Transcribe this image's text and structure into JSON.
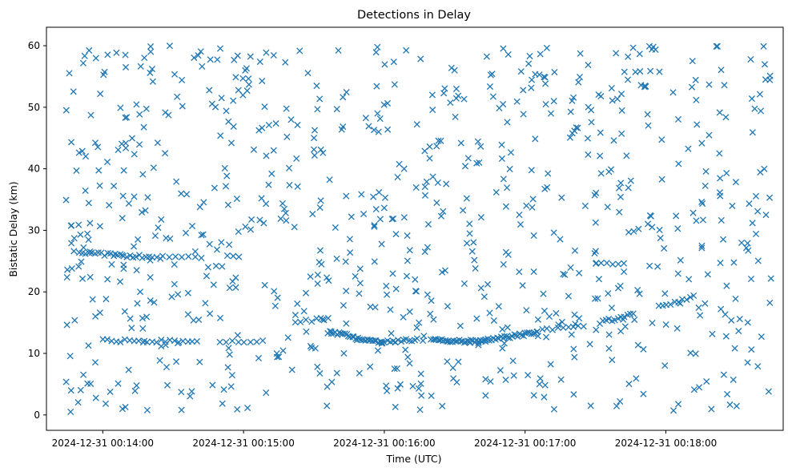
{
  "chart_data": {
    "type": "scatter",
    "title": "Detections in Delay",
    "xlabel": "Time (UTC)",
    "ylabel": "Bistatic Delay (km)",
    "marker": "x",
    "marker_color": "#1f77b4",
    "grid": false,
    "xlim": [
      "2024-12-31 00:13:36",
      "2024-12-31 00:18:50"
    ],
    "ylim": [
      -2.5,
      63
    ],
    "xticks": [
      {
        "label": "2024-12-31 00:14:00",
        "t": "2024-12-31 00:14:00"
      },
      {
        "label": "2024-12-31 00:15:00",
        "t": "2024-12-31 00:15:00"
      },
      {
        "label": "2024-12-31 00:16:00",
        "t": "2024-12-31 00:16:00"
      },
      {
        "label": "2024-12-31 00:17:00",
        "t": "2024-12-31 00:17:00"
      },
      {
        "label": "2024-12-31 00:18:00",
        "t": "2024-12-31 00:18:00"
      }
    ],
    "yticks": [
      0,
      10,
      20,
      30,
      40,
      50,
      60
    ],
    "tracks": [
      {
        "start": "2024-12-31 00:13:50",
        "end": "2024-12-31 00:14:21",
        "y_start": 26.4,
        "y_end": 25.6,
        "points": 24
      },
      {
        "start": "2024-12-31 00:14:23",
        "end": "2024-12-31 00:14:42",
        "y_start": 25.6,
        "y_end": 25.5,
        "points": 8
      },
      {
        "start": "2024-12-31 00:14:53",
        "end": "2024-12-31 00:14:58",
        "y_start": 25.8,
        "y_end": 25.8,
        "points": 3
      },
      {
        "start": "2024-12-31 00:14:00",
        "end": "2024-12-31 00:14:40",
        "y_start": 12.1,
        "y_end": 11.9,
        "points": 22
      },
      {
        "start": "2024-12-31 00:14:50",
        "end": "2024-12-31 00:15:08",
        "y_start": 11.8,
        "y_end": 12.0,
        "points": 8
      },
      {
        "start": "2024-12-31 00:15:22",
        "end": "2024-12-31 00:15:36",
        "y_start": 15.0,
        "y_end": 15.8,
        "points": 7
      },
      {
        "start": "2024-12-31 00:15:36",
        "end": "2024-12-31 00:15:59",
        "y_start": 13.5,
        "y_end": 11.8,
        "points": 30
      },
      {
        "start": "2024-12-31 00:15:59",
        "end": "2024-12-31 00:16:14",
        "y_start": 11.8,
        "y_end": 12.3,
        "points": 14
      },
      {
        "start": "2024-12-31 00:16:20",
        "end": "2024-12-31 00:16:40",
        "y_start": 12.2,
        "y_end": 11.9,
        "points": 28
      },
      {
        "start": "2024-12-31 00:16:40",
        "end": "2024-12-31 00:17:05",
        "y_start": 11.9,
        "y_end": 13.4,
        "points": 32
      },
      {
        "start": "2024-12-31 00:17:05",
        "end": "2024-12-31 00:17:25",
        "y_start": 13.6,
        "y_end": 14.6,
        "points": 10
      },
      {
        "start": "2024-12-31 00:17:32",
        "end": "2024-12-31 00:17:46",
        "y_start": 15.0,
        "y_end": 16.3,
        "points": 12
      },
      {
        "start": "2024-12-31 00:17:30",
        "end": "2024-12-31 00:17:42",
        "y_start": 24.5,
        "y_end": 24.8,
        "points": 6
      },
      {
        "start": "2024-12-31 00:17:57",
        "end": "2024-12-31 00:18:12",
        "y_start": 17.6,
        "y_end": 19.3,
        "points": 10
      }
    ],
    "clutter": {
      "time_range": [
        "2024-12-31 00:13:44",
        "2024-12-31 00:18:45"
      ],
      "delay_range": [
        0.5,
        60
      ],
      "points": 820
    }
  }
}
